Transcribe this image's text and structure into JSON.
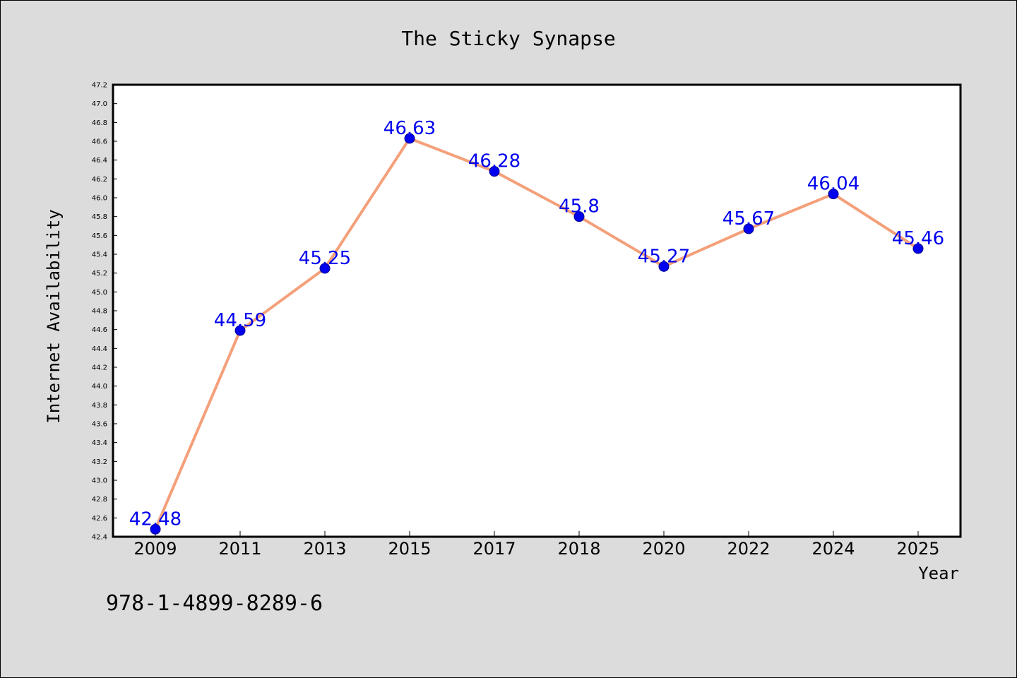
{
  "chart_data": {
    "type": "line",
    "title": "The Sticky Synapse",
    "xlabel": "Year",
    "ylabel": "Internet Availability",
    "categories": [
      "2009",
      "2011",
      "2013",
      "2015",
      "2017",
      "2018",
      "2020",
      "2022",
      "2024",
      "2025"
    ],
    "series": [
      {
        "values": [
          42.48,
          44.59,
          45.25,
          46.63,
          46.28,
          45.8,
          45.27,
          45.67,
          46.04,
          45.46
        ],
        "data_labels": [
          "42.48",
          "44.59",
          "45.25",
          "46.63",
          "46.28",
          "45.8",
          "45.27",
          "45.67",
          "46.04",
          "45.46"
        ]
      }
    ],
    "ylim": [
      42.4,
      47.2
    ],
    "ytick_step": 0.2,
    "grid": false,
    "colors": {
      "line": "#f4a07a",
      "marker": "#0000ee",
      "data_label": "#0000ee",
      "plot_background": "#ffffff",
      "figure_background": "#dcdcdc"
    }
  },
  "footer": {
    "isbn": "978-1-4899-8289-6"
  }
}
